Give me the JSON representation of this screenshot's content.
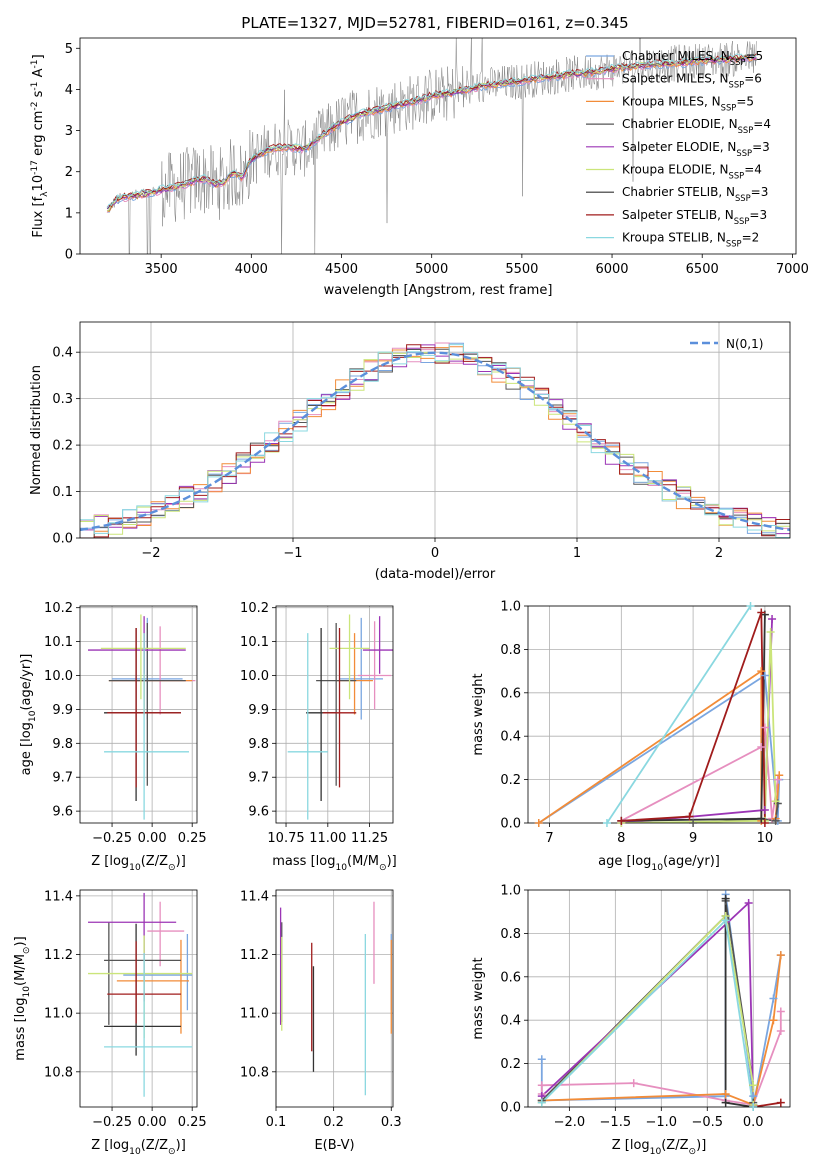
{
  "chart_data": [
    {
      "type": "line",
      "id": "spectrum",
      "title": "PLATE=1327, MJD=52781, FIBERID=0161, z=0.345",
      "xlabel": "wavelength [Angstrom, rest frame]",
      "ylabel": "Flux [f$_\\lambda$10$^{-17}$ erg cm$^{-2}$ s$^{-1}$ A$^{-1}$]",
      "xlim": [
        3050,
        7020
      ],
      "ylim": [
        0,
        5.25
      ],
      "xticks": [
        3500,
        4000,
        4500,
        5000,
        5500,
        6000,
        6500,
        7000
      ],
      "yticks": [
        0,
        1,
        2,
        3,
        4,
        5
      ],
      "grid": false,
      "legend_position": "right",
      "continuum": {
        "x": [
          3200,
          3250,
          3300,
          3350,
          3400,
          3450,
          3500,
          3550,
          3600,
          3650,
          3700,
          3750,
          3800,
          3850,
          3900,
          3950,
          4000,
          4100,
          4200,
          4300,
          4400,
          4500,
          4600,
          4700,
          4800,
          4900,
          5000,
          5100,
          5200,
          5300,
          5400,
          5500,
          5600,
          5700,
          5800,
          5900,
          6000,
          6100,
          6200,
          6300,
          6400,
          6500,
          6600,
          6700,
          6800
        ],
        "y": [
          1.05,
          1.3,
          1.38,
          1.42,
          1.45,
          1.5,
          1.55,
          1.6,
          1.65,
          1.72,
          1.8,
          1.82,
          1.7,
          1.75,
          2.0,
          1.85,
          2.3,
          2.55,
          2.6,
          2.55,
          2.9,
          3.2,
          3.4,
          3.5,
          3.6,
          3.7,
          3.85,
          3.9,
          4.0,
          4.1,
          4.15,
          4.2,
          4.28,
          4.33,
          4.38,
          4.42,
          4.5,
          4.55,
          4.6,
          4.62,
          4.65,
          4.7,
          4.72,
          4.75,
          4.78
        ]
      },
      "series": [
        {
          "name": "Chabrier MILES, N$_{SSP}$=5",
          "color": "#7aa6e0",
          "lw": 0.9
        },
        {
          "name": "Salpeter MILES, N$_{SSP}$=6",
          "color": "#e68fbf",
          "lw": 0.9
        },
        {
          "name": "Kroupa MILES, N$_{SSP}$=5",
          "color": "#f28c38",
          "lw": 0.9
        },
        {
          "name": "Chabrier ELODIE, N$_{SSP}$=4",
          "color": "#555555",
          "lw": 0.5
        },
        {
          "name": "Salpeter ELODIE, N$_{SSP}$=3",
          "color": "#9b35b5",
          "lw": 0.9
        },
        {
          "name": "Kroupa ELODIE, N$_{SSP}$=4",
          "color": "#cbe57a",
          "lw": 0.9
        },
        {
          "name": "Chabrier STELIB, N$_{SSP}$=3",
          "color": "#333333",
          "lw": 0.5
        },
        {
          "name": "Salpeter STELIB, N$_{SSP}$=3",
          "color": "#a01c1c",
          "lw": 0.9
        },
        {
          "name": "Kroupa STELIB, N$_{SSP}$=2",
          "color": "#8ad8e0",
          "lw": 0.9
        }
      ],
      "data_series": {
        "name": "data",
        "color": "#808080"
      }
    },
    {
      "type": "line",
      "id": "residuals",
      "xlabel": "(data-model)/error",
      "ylabel": "Normed distribution",
      "xlim": [
        -2.5,
        2.5
      ],
      "ylim": [
        0,
        0.465
      ],
      "xticks": [
        -2,
        -1,
        0,
        1,
        2
      ],
      "yticks": [
        0.0,
        0.1,
        0.2,
        0.3,
        0.4
      ],
      "grid": true,
      "legend_position": "top-right",
      "legend_label": "$\\mathcal{N}(0,1)$",
      "gauss_color": "#5b8fdb",
      "bin_width": 0.1,
      "hist_colors": [
        "#7aa6e0",
        "#e68fbf",
        "#f28c38",
        "#555555",
        "#9b35b5",
        "#cbe57a",
        "#a01c1c",
        "#8ad8e0"
      ]
    },
    {
      "type": "scatter",
      "id": "age-vs-Z",
      "xlabel": "Z [log$_{10}$(Z/Z$_\\odot$)]",
      "ylabel": "age  [log$_{10}$(age/yr)]",
      "xlim": [
        -0.45,
        0.28
      ],
      "ylim": [
        9.565,
        10.205
      ],
      "xticks": [
        -0.25,
        0.0,
        0.25
      ],
      "yticks": [
        9.6,
        9.7,
        9.8,
        9.9,
        10.0,
        10.1,
        10.2
      ],
      "grid": true,
      "points": [
        {
          "color": "#7aa6e0",
          "x": -0.03,
          "xerr": [
            0.22,
            0.22
          ],
          "y": 9.99,
          "yerr": [
            0.12,
            0.18
          ]
        },
        {
          "color": "#e68fbf",
          "x": 0.05,
          "xerr": [
            0.3,
            0.22
          ],
          "y": 9.985,
          "yerr": [
            0.1,
            0.16
          ]
        },
        {
          "color": "#f28c38",
          "x": -0.05,
          "xerr": [
            0.22,
            0.3
          ],
          "y": 9.985,
          "yerr": [
            0.1,
            0.14
          ]
        },
        {
          "color": "#555555",
          "x": -0.03,
          "xerr": [
            0.24,
            0.24
          ],
          "y": 9.985,
          "yerr": [
            0.31,
            0.17
          ]
        },
        {
          "color": "#9b35b5",
          "x": -0.05,
          "xerr": [
            0.35,
            0.26
          ],
          "y": 10.075,
          "yerr": [
            0.07,
            0.1
          ]
        },
        {
          "color": "#cbe57a",
          "x": -0.07,
          "xerr": [
            0.25,
            0.28
          ],
          "y": 10.08,
          "yerr": [
            0.15,
            0.1
          ]
        },
        {
          "color": "#333333",
          "x": -0.1,
          "xerr": [
            0.2,
            0.28
          ],
          "y": 9.89,
          "yerr": [
            0.26,
            0.25
          ]
        },
        {
          "color": "#a01c1c",
          "x": -0.1,
          "xerr": [
            0.18,
            0.28
          ],
          "y": 9.89,
          "yerr": [
            0.22,
            0.25
          ]
        },
        {
          "color": "#8ad8e0",
          "x": -0.05,
          "xerr": [
            0.25,
            0.28
          ],
          "y": 9.775,
          "yerr": [
            0.2,
            0.35
          ]
        }
      ]
    },
    {
      "type": "scatter",
      "id": "age-vs-mass",
      "xlabel": "mass [log$_{10}$(M/M$_\\odot$)]",
      "ylabel": "",
      "xlim": [
        10.69,
        11.39
      ],
      "ylim": [
        9.565,
        10.205
      ],
      "xticks": [
        10.75,
        11.0,
        11.25
      ],
      "yticks": [
        9.6,
        9.7,
        9.8,
        9.9,
        10.0,
        10.1,
        10.2
      ],
      "grid": true,
      "points": [
        {
          "color": "#7aa6e0",
          "x": 11.2,
          "xerr": [
            0.13,
            0.13
          ],
          "y": 9.99,
          "yerr": [
            0.12,
            0.18
          ]
        },
        {
          "color": "#e68fbf",
          "x": 11.28,
          "xerr": [
            0.1,
            0.1
          ],
          "y": 10.0,
          "yerr": [
            0.1,
            0.16
          ]
        },
        {
          "color": "#f28c38",
          "x": 11.16,
          "xerr": [
            0.11,
            0.11
          ],
          "y": 9.985,
          "yerr": [
            0.1,
            0.14
          ]
        },
        {
          "color": "#555555",
          "x": 11.05,
          "xerr": [
            0.12,
            0.12
          ],
          "y": 9.985,
          "yerr": [
            0.31,
            0.17
          ]
        },
        {
          "color": "#9b35b5",
          "x": 11.31,
          "xerr": [
            0.1,
            0.08
          ],
          "y": 10.075,
          "yerr": [
            0.07,
            0.1
          ]
        },
        {
          "color": "#cbe57a",
          "x": 11.13,
          "xerr": [
            0.12,
            0.12
          ],
          "y": 10.08,
          "yerr": [
            0.15,
            0.1
          ]
        },
        {
          "color": "#333333",
          "x": 10.96,
          "xerr": [
            0.09,
            0.09
          ],
          "y": 9.89,
          "yerr": [
            0.26,
            0.25
          ]
        },
        {
          "color": "#a01c1c",
          "x": 11.07,
          "xerr": [
            0.1,
            0.1
          ],
          "y": 9.89,
          "yerr": [
            0.22,
            0.25
          ]
        },
        {
          "color": "#8ad8e0",
          "x": 10.88,
          "xerr": [
            0.12,
            0.12
          ],
          "y": 9.775,
          "yerr": [
            0.2,
            0.35
          ]
        }
      ]
    },
    {
      "type": "line",
      "id": "mass-weight-vs-age",
      "xlabel": "age  [log$_{10}$(age/yr)]",
      "ylabel": "mass weight",
      "xlim": [
        6.7,
        10.35
      ],
      "ylim": [
        0,
        1.0
      ],
      "xticks": [
        7,
        8,
        9,
        10
      ],
      "yticks": [
        0.0,
        0.2,
        0.4,
        0.6,
        0.8,
        1.0
      ],
      "grid": true,
      "series": [
        {
          "color": "#7aa6e0",
          "x": [
            6.85,
            10.0,
            10.18,
            10.2
          ],
          "y": [
            0.0,
            0.68,
            0.01,
            0.2
          ]
        },
        {
          "color": "#e68fbf",
          "x": [
            8.0,
            9.95,
            10.0,
            10.1,
            10.18
          ],
          "y": [
            0.01,
            0.35,
            0.44,
            0.02,
            0.2
          ]
        },
        {
          "color": "#f28c38",
          "x": [
            6.85,
            9.95,
            9.95,
            10.15,
            10.2
          ],
          "y": [
            0.0,
            0.7,
            0.01,
            0.02,
            0.22
          ]
        },
        {
          "color": "#555555",
          "x": [
            9.0,
            9.95,
            10.15,
            10.18
          ],
          "y": [
            0.0,
            0.02,
            0.01,
            0.09
          ]
        },
        {
          "color": "#9b35b5",
          "x": [
            8.0,
            10.0,
            10.1
          ],
          "y": [
            0.0,
            0.06,
            0.94
          ]
        },
        {
          "color": "#cbe57a",
          "x": [
            8.0,
            10.0,
            10.08,
            10.15
          ],
          "y": [
            0.0,
            0.01,
            0.88,
            0.1
          ]
        },
        {
          "color": "#333333",
          "x": [
            8.0,
            9.95,
            10.0
          ],
          "y": [
            0.01,
            0.02,
            0.96
          ]
        },
        {
          "color": "#a01c1c",
          "x": [
            8.0,
            8.95,
            9.95,
            10.0
          ],
          "y": [
            0.01,
            0.03,
            0.97,
            0.0
          ]
        },
        {
          "color": "#8ad8e0",
          "x": [
            7.8,
            9.8
          ],
          "y": [
            0.0,
            1.0
          ]
        }
      ]
    },
    {
      "type": "scatter",
      "id": "mass-vs-Z",
      "xlabel": "Z [log$_{10}$(Z/Z$_\\odot$)]",
      "ylabel": "mass [log$_{10}$(M/M$_\\odot$)]",
      "xlim": [
        -0.45,
        0.28
      ],
      "ylim": [
        10.68,
        11.42
      ],
      "xticks": [
        -0.25,
        0.0,
        0.25
      ],
      "yticks": [
        10.8,
        11.0,
        11.2,
        11.4
      ],
      "grid": true,
      "points": [
        {
          "color": "#7aa6e0",
          "x": 0.22,
          "xerr": [
            0.4,
            0.03
          ],
          "y": 11.13,
          "yerr": [
            0.12,
            0.14
          ]
        },
        {
          "color": "#e68fbf",
          "x": 0.05,
          "xerr": [
            0.08,
            0.15
          ],
          "y": 11.28,
          "yerr": [
            0.12,
            0.1
          ]
        },
        {
          "color": "#f28c38",
          "x": 0.18,
          "xerr": [
            0.4,
            0.05
          ],
          "y": 11.11,
          "yerr": [
            0.18,
            0.14
          ]
        },
        {
          "color": "#555555",
          "x": -0.27,
          "xerr": [
            0.03,
            0.45
          ],
          "y": 11.18,
          "yerr": [
            0.22,
            0.13
          ]
        },
        {
          "color": "#9b35b5",
          "x": -0.05,
          "xerr": [
            0.35,
            0.2
          ],
          "y": 11.31,
          "yerr": [
            0.27,
            0.1
          ]
        },
        {
          "color": "#cbe57a",
          "x": -0.05,
          "xerr": [
            0.35,
            0.3
          ],
          "y": 11.135,
          "yerr": [
            0.22,
            0.13
          ]
        },
        {
          "color": "#333333",
          "x": -0.1,
          "xerr": [
            0.2,
            0.28
          ],
          "y": 10.955,
          "yerr": [
            0.1,
            0.35
          ]
        },
        {
          "color": "#a01c1c",
          "x": -0.1,
          "xerr": [
            0.18,
            0.28
          ],
          "y": 11.065,
          "yerr": [
            0.1,
            0.18
          ]
        },
        {
          "color": "#8ad8e0",
          "x": -0.05,
          "xerr": [
            0.25,
            0.3
          ],
          "y": 10.885,
          "yerr": [
            0.17,
            0.32
          ]
        }
      ]
    },
    {
      "type": "scatter",
      "id": "mass-vs-EBV",
      "xlabel": "E(B-V)",
      "ylabel": "",
      "xlim": [
        0.1,
        0.303
      ],
      "ylim": [
        10.68,
        11.42
      ],
      "xticks": [
        0.1,
        0.2,
        0.3
      ],
      "yticks": [
        10.8,
        11.0,
        11.2,
        11.4
      ],
      "grid": true,
      "points": [
        {
          "color": "#7aa6e0",
          "x": 0.3,
          "y": 11.13,
          "yerr": [
            0.12,
            0.14
          ]
        },
        {
          "color": "#e68fbf",
          "x": 0.27,
          "y": 11.28,
          "yerr": [
            0.18,
            0.1
          ]
        },
        {
          "color": "#f28c38",
          "x": 0.3,
          "y": 11.11,
          "yerr": [
            0.18,
            0.14
          ]
        },
        {
          "color": "#555555",
          "x": 0.11,
          "y": 11.14,
          "yerr": [
            0.17,
            0.17
          ]
        },
        {
          "color": "#9b35b5",
          "x": 0.108,
          "y": 11.18,
          "yerr": [
            0.22,
            0.18
          ]
        },
        {
          "color": "#cbe57a",
          "x": 0.11,
          "y": 11.14,
          "yerr": [
            0.2,
            0.12
          ]
        },
        {
          "color": "#333333",
          "x": 0.165,
          "y": 11.02,
          "yerr": [
            0.22,
            0.14
          ]
        },
        {
          "color": "#a01c1c",
          "x": 0.162,
          "y": 11.09,
          "yerr": [
            0.22,
            0.15
          ]
        },
        {
          "color": "#8ad8e0",
          "x": 0.255,
          "y": 10.99,
          "yerr": [
            0.27,
            0.28
          ]
        }
      ]
    },
    {
      "type": "line",
      "id": "mass-weight-vs-Z",
      "xlabel": "Z [log$_{10}$(Z/Z$_\\odot$)]",
      "ylabel": "mass weight",
      "xlim": [
        -2.45,
        0.4
      ],
      "ylim": [
        0,
        1.0
      ],
      "xticks": [
        -2.0,
        -1.5,
        -1.0,
        -0.5,
        0.0
      ],
      "yticks": [
        0.0,
        0.2,
        0.4,
        0.6,
        0.8,
        1.0
      ],
      "grid": true,
      "series": [
        {
          "color": "#7aa6e0",
          "x": [
            -2.3,
            -2.3,
            -0.3,
            -0.3,
            0.0,
            0.0,
            0.22,
            0.3
          ],
          "y": [
            0.22,
            0.03,
            0.05,
            0.98,
            0.05,
            0.0,
            0.5,
            0.7
          ]
        },
        {
          "color": "#e68fbf",
          "x": [
            -2.3,
            -2.3,
            -1.3,
            -0.3,
            0.0,
            0.3,
            0.3
          ],
          "y": [
            0.06,
            0.1,
            0.11,
            0.03,
            0.01,
            0.35,
            0.44
          ]
        },
        {
          "color": "#f28c38",
          "x": [
            -2.3,
            -0.3,
            0.0,
            0.22,
            0.3
          ],
          "y": [
            0.03,
            0.06,
            0.01,
            0.4,
            0.7
          ]
        },
        {
          "color": "#555555",
          "x": [
            -2.3,
            -0.3,
            -0.3,
            0.0,
            0.0
          ],
          "y": [
            0.03,
            0.88,
            0.95,
            0.1,
            0.02
          ]
        },
        {
          "color": "#9b35b5",
          "x": [
            -2.3,
            -0.05,
            0.0
          ],
          "y": [
            0.05,
            0.94,
            0.01
          ]
        },
        {
          "color": "#cbe57a",
          "x": [
            -2.3,
            -0.3,
            0.0,
            0.0
          ],
          "y": [
            0.02,
            0.88,
            0.1,
            0.01
          ]
        },
        {
          "color": "#333333",
          "x": [
            -0.3,
            -0.3,
            0.0
          ],
          "y": [
            0.96,
            0.02,
            0.0
          ]
        },
        {
          "color": "#a01c1c",
          "x": [
            0.0,
            0.3
          ],
          "y": [
            0.0,
            0.02
          ]
        },
        {
          "color": "#8ad8e0",
          "x": [
            -2.3,
            -0.3,
            0.0
          ],
          "y": [
            0.02,
            0.86,
            0.0
          ]
        }
      ]
    }
  ]
}
